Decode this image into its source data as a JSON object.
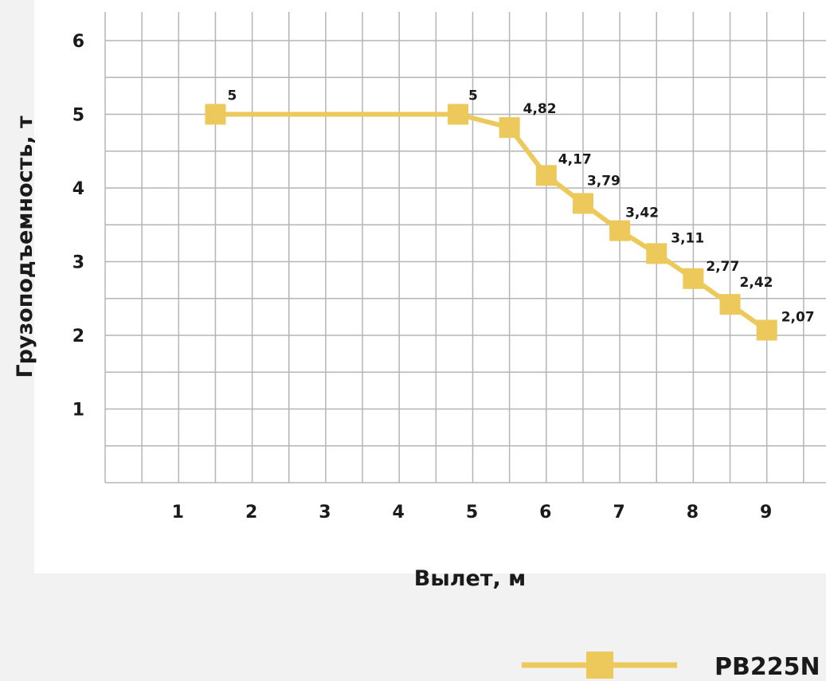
{
  "chart_data": {
    "type": "line",
    "title": "",
    "xlabel": "Вылет, м",
    "ylabel": "Грузоподъемность, т",
    "xlim": [
      0,
      9.5
    ],
    "ylim": [
      0,
      6.5
    ],
    "x_ticks": [
      "1",
      "2",
      "3",
      "4",
      "5",
      "6",
      "7",
      "8",
      "9"
    ],
    "y_ticks": [
      "1",
      "2",
      "3",
      "4",
      "5",
      "6"
    ],
    "grid": true,
    "legend_position": "bottom-right",
    "series": [
      {
        "name": "PB225N",
        "color": "#ecc95a",
        "marker": "square",
        "x": [
          1.5,
          4.8,
          5.5,
          6.0,
          6.5,
          7.0,
          7.5,
          8.0,
          8.5,
          9.0
        ],
        "y": [
          5,
          5,
          4.82,
          4.17,
          3.79,
          3.42,
          3.11,
          2.77,
          2.42,
          2.07
        ],
        "labels": [
          "5",
          "5",
          "4,82",
          "4,17",
          "3,79",
          "3,42",
          "3,11",
          "2,77",
          "2,42",
          "2,07"
        ]
      }
    ]
  }
}
